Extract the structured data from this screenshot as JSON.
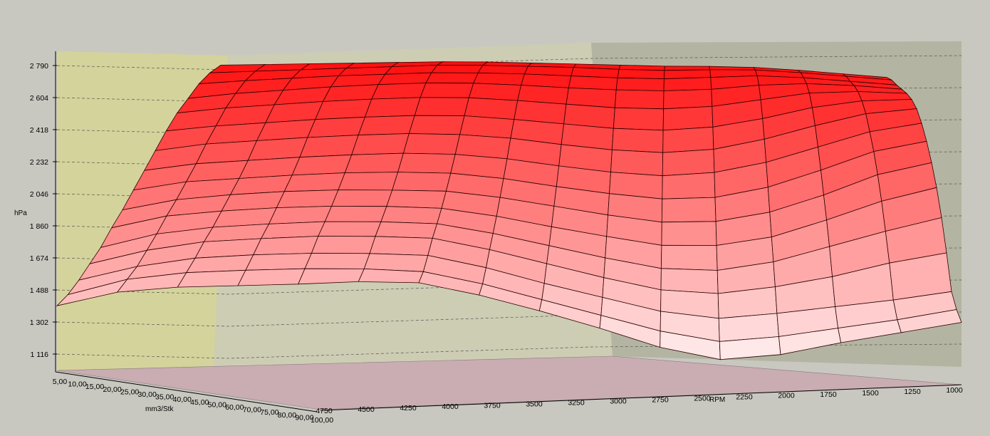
{
  "chart_data": {
    "type": "surface3d",
    "zlabel": "hPa",
    "z_ticks": [
      "1 116",
      "1 302",
      "1 488",
      "1 674",
      "1 860",
      "2 046",
      "2 232",
      "2 418",
      "2 604",
      "2 790"
    ],
    "z_range": [
      1116,
      2790
    ],
    "y_axis": {
      "label": "mm3/Stk",
      "ticks": [
        "5,00",
        "10,00",
        "15,00",
        "20,00",
        "25,00",
        "30,00",
        "35,00",
        "40,00",
        "45,00",
        "50,00",
        "60,00",
        "70,00",
        "75,00",
        "80,00",
        "90,00",
        "100,00"
      ]
    },
    "x_axis": {
      "label": "RPM",
      "ticks": [
        "4750",
        "4500",
        "4250",
        "4000",
        "3750",
        "3500",
        "3250",
        "3000",
        "2750",
        "2500",
        "2250",
        "2000",
        "1750",
        "1500",
        "1250",
        "1000"
      ]
    },
    "surface_colors": {
      "low": "#fff6f6",
      "high": "#ff1010",
      "wall_left": "#d4d39c",
      "wall_right": "#b4b4a2",
      "floor": "#c9adb2",
      "background": "#c8c8c0"
    },
    "surface_rows": [
      [
        1450,
        1530,
        1560,
        1570,
        1580,
        1595,
        1590,
        1520,
        1430,
        1330,
        1220,
        1150,
        1180,
        1250,
        1310,
        1370
      ],
      [
        1510,
        1600,
        1640,
        1655,
        1665,
        1665,
        1650,
        1580,
        1490,
        1400,
        1310,
        1250,
        1280,
        1330,
        1380,
        1440
      ],
      [
        1590,
        1670,
        1720,
        1740,
        1750,
        1750,
        1740,
        1670,
        1580,
        1500,
        1420,
        1380,
        1410,
        1450,
        1490,
        1540
      ],
      [
        1680,
        1760,
        1810,
        1830,
        1845,
        1845,
        1835,
        1770,
        1690,
        1610,
        1540,
        1520,
        1560,
        1620,
        1700,
        1760
      ],
      [
        1770,
        1850,
        1890,
        1910,
        1925,
        1925,
        1915,
        1860,
        1790,
        1720,
        1660,
        1650,
        1700,
        1790,
        1880,
        1960
      ],
      [
        1880,
        1950,
        1980,
        2000,
        2010,
        2010,
        2000,
        1955,
        1895,
        1840,
        1790,
        1790,
        1840,
        1940,
        2050,
        2130
      ],
      [
        1980,
        2040,
        2070,
        2090,
        2100,
        2100,
        2095,
        2060,
        2010,
        1960,
        1920,
        1925,
        1980,
        2080,
        2200,
        2270
      ],
      [
        2090,
        2140,
        2160,
        2180,
        2195,
        2200,
        2195,
        2165,
        2120,
        2080,
        2050,
        2060,
        2120,
        2220,
        2330,
        2390
      ],
      [
        2200,
        2240,
        2260,
        2280,
        2295,
        2305,
        2300,
        2275,
        2235,
        2200,
        2180,
        2200,
        2260,
        2350,
        2440,
        2490
      ],
      [
        2310,
        2350,
        2370,
        2390,
        2405,
        2415,
        2410,
        2390,
        2355,
        2325,
        2310,
        2330,
        2390,
        2470,
        2540,
        2570
      ],
      [
        2420,
        2450,
        2470,
        2490,
        2505,
        2515,
        2515,
        2495,
        2470,
        2445,
        2435,
        2455,
        2505,
        2570,
        2610,
        2620
      ],
      [
        2520,
        2550,
        2570,
        2590,
        2605,
        2615,
        2615,
        2600,
        2580,
        2560,
        2555,
        2570,
        2610,
        2650,
        2660,
        2650
      ],
      [
        2600,
        2630,
        2650,
        2670,
        2685,
        2695,
        2695,
        2685,
        2670,
        2660,
        2655,
        2665,
        2690,
        2700,
        2690,
        2670
      ],
      [
        2680,
        2700,
        2715,
        2730,
        2740,
        2750,
        2750,
        2745,
        2735,
        2725,
        2720,
        2730,
        2740,
        2730,
        2710,
        2690
      ],
      [
        2740,
        2750,
        2760,
        2770,
        2780,
        2790,
        2790,
        2785,
        2780,
        2770,
        2765,
        2770,
        2770,
        2755,
        2735,
        2715
      ],
      [
        2780,
        2785,
        2790,
        2795,
        2800,
        2805,
        2805,
        2800,
        2795,
        2790,
        2785,
        2785,
        2780,
        2765,
        2745,
        2725
      ]
    ]
  }
}
